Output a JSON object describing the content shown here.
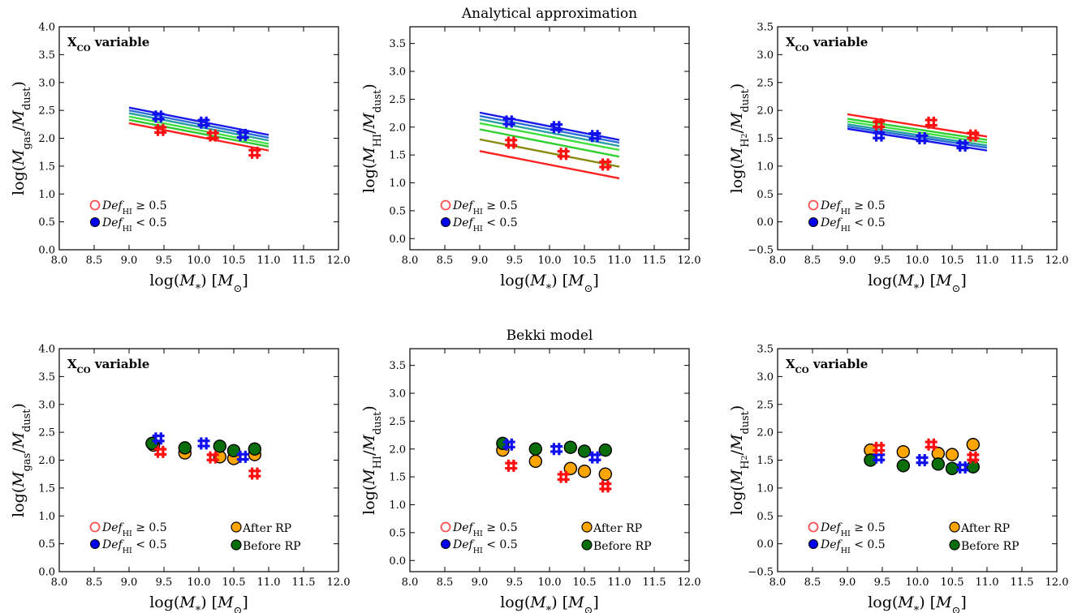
{
  "figure": {
    "row_titles": [
      "Analytical approximation",
      "Bekki model"
    ],
    "xlabel": "log(M*) [M⊙]",
    "annotation": "XCO variable"
  },
  "chart_data": [
    {
      "type": "line",
      "row": 0,
      "col": 0,
      "ylabel": "log(Mgas/Mdust)",
      "xlim": [
        8.0,
        12.0
      ],
      "ylim": [
        0.0,
        4.0
      ],
      "xticks": [
        "8.0",
        "8.5",
        "9.0",
        "9.5",
        "10.0",
        "10.5",
        "11.0",
        "11.5",
        "12.0"
      ],
      "yticks": [
        "0.0",
        "0.5",
        "1.0",
        "1.5",
        "2.0",
        "2.5",
        "3.0",
        "3.5",
        "4.0"
      ],
      "annotation": "XCO variable",
      "lines": [
        {
          "color": "#ff2020",
          "x": [
            9.0,
            11.0
          ],
          "y": [
            2.27,
            1.78
          ]
        },
        {
          "color": "#2fc82f",
          "x": [
            9.0,
            11.0
          ],
          "y": [
            2.33,
            1.85
          ]
        },
        {
          "color": "#40e040",
          "x": [
            9.0,
            11.0
          ],
          "y": [
            2.39,
            1.9
          ]
        },
        {
          "color": "#2aa0a0",
          "x": [
            9.0,
            11.0
          ],
          "y": [
            2.45,
            1.96
          ]
        },
        {
          "color": "#2a6cd8",
          "x": [
            9.0,
            11.0
          ],
          "y": [
            2.5,
            2.01
          ]
        },
        {
          "color": "#1818e8",
          "x": [
            9.0,
            11.0
          ],
          "y": [
            2.55,
            2.06
          ]
        }
      ],
      "points": [
        {
          "group": "def_low",
          "color": "#1010ee",
          "x": 9.42,
          "y": 2.39
        },
        {
          "group": "def_low",
          "color": "#1010ee",
          "x": 10.07,
          "y": 2.28
        },
        {
          "group": "def_low",
          "color": "#1010ee",
          "x": 10.63,
          "y": 2.06
        },
        {
          "group": "def_high",
          "color": "#ff1010",
          "x": 9.45,
          "y": 2.15
        },
        {
          "group": "def_high",
          "color": "#ff1010",
          "x": 10.2,
          "y": 2.05
        },
        {
          "group": "def_high",
          "color": "#ff1010",
          "x": 10.8,
          "y": 1.74
        }
      ],
      "legend": [
        {
          "label": "DefHI ≥ 0.5",
          "marker": "open-circle",
          "color": "#ff5050"
        },
        {
          "label": "DefHI < 0.5",
          "marker": "filled-circle",
          "color": "#0000ee"
        }
      ],
      "legend2": []
    },
    {
      "type": "line",
      "row": 0,
      "col": 1,
      "ylabel": "log(MHI/Mdust)",
      "xlim": [
        8.0,
        12.0
      ],
      "ylim": [
        -0.2,
        3.8
      ],
      "xticks": [
        "8.0",
        "8.5",
        "9.0",
        "9.5",
        "10.0",
        "10.5",
        "11.0",
        "11.5",
        "12.0"
      ],
      "yticks": [
        "0.0",
        "0.5",
        "1.0",
        "1.5",
        "2.0",
        "2.5",
        "3.0",
        "3.5"
      ],
      "annotation": "",
      "lines": [
        {
          "color": "#ff2020",
          "x": [
            9.0,
            11.0
          ],
          "y": [
            1.57,
            1.08
          ]
        },
        {
          "color": "#8a8a10",
          "x": [
            9.0,
            11.0
          ],
          "y": [
            1.78,
            1.29
          ]
        },
        {
          "color": "#30d030",
          "x": [
            9.0,
            11.0
          ],
          "y": [
            1.96,
            1.47
          ]
        },
        {
          "color": "#40e040",
          "x": [
            9.0,
            11.0
          ],
          "y": [
            2.07,
            1.59
          ]
        },
        {
          "color": "#2aa0a0",
          "x": [
            9.0,
            11.0
          ],
          "y": [
            2.14,
            1.66
          ]
        },
        {
          "color": "#2a6cd8",
          "x": [
            9.0,
            11.0
          ],
          "y": [
            2.2,
            1.72
          ]
        },
        {
          "color": "#1818e8",
          "x": [
            9.0,
            11.0
          ],
          "y": [
            2.26,
            1.77
          ]
        }
      ],
      "points": [
        {
          "group": "def_low",
          "color": "#1010ee",
          "x": 9.42,
          "y": 2.1
        },
        {
          "group": "def_low",
          "color": "#1010ee",
          "x": 10.1,
          "y": 2.0
        },
        {
          "group": "def_low",
          "color": "#1010ee",
          "x": 10.65,
          "y": 1.84
        },
        {
          "group": "def_high",
          "color": "#ff1010",
          "x": 9.45,
          "y": 1.72
        },
        {
          "group": "def_high",
          "color": "#ff1010",
          "x": 10.2,
          "y": 1.52
        },
        {
          "group": "def_high",
          "color": "#ff1010",
          "x": 10.8,
          "y": 1.33
        }
      ],
      "legend": [
        {
          "label": "DefHI ≥ 0.5",
          "marker": "open-circle",
          "color": "#ff5050"
        },
        {
          "label": "DefHI < 0.5",
          "marker": "filled-circle",
          "color": "#0000ee"
        }
      ],
      "legend2": []
    },
    {
      "type": "line",
      "row": 0,
      "col": 2,
      "ylabel": "log(MH2/Mdust)",
      "xlim": [
        8.0,
        12.0
      ],
      "ylim": [
        -0.5,
        3.5
      ],
      "xticks": [
        "8.0",
        "8.5",
        "9.0",
        "9.5",
        "10.0",
        "10.5",
        "11.0",
        "11.5",
        "12.0"
      ],
      "yticks": [
        "−0.5",
        "0.0",
        "0.5",
        "1.0",
        "1.5",
        "2.0",
        "2.5",
        "3.0",
        "3.5"
      ],
      "annotation": "XCO variable",
      "lines": [
        {
          "color": "#ff2020",
          "x": [
            9.0,
            11.0
          ],
          "y": [
            1.93,
            1.53
          ]
        },
        {
          "color": "#30d030",
          "x": [
            9.0,
            11.0
          ],
          "y": [
            1.85,
            1.47
          ]
        },
        {
          "color": "#40e040",
          "x": [
            9.0,
            11.0
          ],
          "y": [
            1.8,
            1.42
          ]
        },
        {
          "color": "#2aa0a0",
          "x": [
            9.0,
            11.0
          ],
          "y": [
            1.75,
            1.37
          ]
        },
        {
          "color": "#2a6cd8",
          "x": [
            9.0,
            11.0
          ],
          "y": [
            1.71,
            1.33
          ]
        },
        {
          "color": "#1818e8",
          "x": [
            9.0,
            11.0
          ],
          "y": [
            1.67,
            1.28
          ]
        }
      ],
      "points": [
        {
          "group": "def_low",
          "color": "#1010ee",
          "x": 9.45,
          "y": 1.55
        },
        {
          "group": "def_low",
          "color": "#1010ee",
          "x": 10.07,
          "y": 1.5
        },
        {
          "group": "def_low",
          "color": "#1010ee",
          "x": 10.65,
          "y": 1.37
        },
        {
          "group": "def_high",
          "color": "#ff1010",
          "x": 9.45,
          "y": 1.75
        },
        {
          "group": "def_high",
          "color": "#ff1010",
          "x": 10.2,
          "y": 1.78
        },
        {
          "group": "def_high",
          "color": "#ff1010",
          "x": 10.8,
          "y": 1.55
        }
      ],
      "legend": [
        {
          "label": "DefHI ≥ 0.5",
          "marker": "open-circle",
          "color": "#ff5050"
        },
        {
          "label": "DefHI < 0.5",
          "marker": "filled-circle",
          "color": "#0000ee"
        }
      ],
      "legend2": []
    },
    {
      "type": "scatter",
      "row": 1,
      "col": 0,
      "ylabel": "log(Mgas/Mdust)",
      "xlim": [
        8.0,
        12.0
      ],
      "ylim": [
        0.0,
        4.0
      ],
      "xticks": [
        "8.0",
        "8.5",
        "9.0",
        "9.5",
        "10.0",
        "10.5",
        "11.0",
        "11.5",
        "12.0"
      ],
      "yticks": [
        "0.0",
        "0.5",
        "1.0",
        "1.5",
        "2.0",
        "2.5",
        "3.0",
        "3.5",
        "4.0"
      ],
      "annotation": "XCO variable",
      "lines": [],
      "circles": [
        {
          "series": "After RP",
          "color": "#ffa500",
          "x": 9.35,
          "y": 2.27
        },
        {
          "series": "After RP",
          "color": "#ffa500",
          "x": 9.8,
          "y": 2.13
        },
        {
          "series": "After RP",
          "color": "#ffa500",
          "x": 10.3,
          "y": 2.06
        },
        {
          "series": "After RP",
          "color": "#ffa500",
          "x": 10.5,
          "y": 2.03
        },
        {
          "series": "After RP",
          "color": "#ffa500",
          "x": 10.8,
          "y": 2.1
        },
        {
          "series": "Before RP",
          "color": "#0a6e0a",
          "x": 9.33,
          "y": 2.3
        },
        {
          "series": "Before RP",
          "color": "#0a6e0a",
          "x": 9.8,
          "y": 2.22
        },
        {
          "series": "Before RP",
          "color": "#0a6e0a",
          "x": 10.3,
          "y": 2.25
        },
        {
          "series": "Before RP",
          "color": "#0a6e0a",
          "x": 10.5,
          "y": 2.17
        },
        {
          "series": "Before RP",
          "color": "#0a6e0a",
          "x": 10.8,
          "y": 2.2
        }
      ],
      "points": [
        {
          "group": "def_low",
          "color": "#1010ee",
          "x": 9.42,
          "y": 2.39
        },
        {
          "group": "def_low",
          "color": "#1010ee",
          "x": 10.07,
          "y": 2.3
        },
        {
          "group": "def_low",
          "color": "#1010ee",
          "x": 10.63,
          "y": 2.06
        },
        {
          "group": "def_high",
          "color": "#ff1010",
          "x": 9.45,
          "y": 2.15
        },
        {
          "group": "def_high",
          "color": "#ff1010",
          "x": 10.2,
          "y": 2.05
        },
        {
          "group": "def_high",
          "color": "#ff1010",
          "x": 10.8,
          "y": 1.76
        }
      ],
      "legend": [
        {
          "label": "DefHI ≥ 0.5",
          "marker": "open-circle",
          "color": "#ff5050"
        },
        {
          "label": "DefHI < 0.5",
          "marker": "filled-circle",
          "color": "#0000ee"
        }
      ],
      "legend2": [
        {
          "label": "After RP",
          "color": "#ffa500"
        },
        {
          "label": "Before RP",
          "color": "#0a6e0a"
        }
      ]
    },
    {
      "type": "scatter",
      "row": 1,
      "col": 1,
      "ylabel": "log(MHI/Mdust)",
      "xlim": [
        8.0,
        12.0
      ],
      "ylim": [
        -0.2,
        3.8
      ],
      "xticks": [
        "8.0",
        "8.5",
        "9.0",
        "9.5",
        "10.0",
        "10.5",
        "11.0",
        "11.5",
        "12.0"
      ],
      "yticks": [
        "0.0",
        "0.5",
        "1.0",
        "1.5",
        "2.0",
        "2.5",
        "3.0",
        "3.5"
      ],
      "annotation": "",
      "lines": [],
      "circles": [
        {
          "series": "After RP",
          "color": "#ffa500",
          "x": 9.33,
          "y": 1.98
        },
        {
          "series": "After RP",
          "color": "#ffa500",
          "x": 9.8,
          "y": 1.78
        },
        {
          "series": "After RP",
          "color": "#ffa500",
          "x": 10.3,
          "y": 1.65
        },
        {
          "series": "After RP",
          "color": "#ffa500",
          "x": 10.5,
          "y": 1.6
        },
        {
          "series": "After RP",
          "color": "#ffa500",
          "x": 10.8,
          "y": 1.55
        },
        {
          "series": "Before RP",
          "color": "#0a6e0a",
          "x": 9.33,
          "y": 2.1
        },
        {
          "series": "Before RP",
          "color": "#0a6e0a",
          "x": 9.8,
          "y": 2.0
        },
        {
          "series": "Before RP",
          "color": "#0a6e0a",
          "x": 10.3,
          "y": 2.03
        },
        {
          "series": "Before RP",
          "color": "#0a6e0a",
          "x": 10.5,
          "y": 1.96
        },
        {
          "series": "Before RP",
          "color": "#0a6e0a",
          "x": 10.8,
          "y": 1.98
        }
      ],
      "points": [
        {
          "group": "def_low",
          "color": "#1010ee",
          "x": 9.42,
          "y": 2.08
        },
        {
          "group": "def_low",
          "color": "#1010ee",
          "x": 10.1,
          "y": 2.0
        },
        {
          "group": "def_low",
          "color": "#1010ee",
          "x": 10.65,
          "y": 1.85
        },
        {
          "group": "def_high",
          "color": "#ff1010",
          "x": 9.45,
          "y": 1.7
        },
        {
          "group": "def_high",
          "color": "#ff1010",
          "x": 10.2,
          "y": 1.5
        },
        {
          "group": "def_high",
          "color": "#ff1010",
          "x": 10.8,
          "y": 1.33
        }
      ],
      "legend": [
        {
          "label": "DefHI ≥ 0.5",
          "marker": "open-circle",
          "color": "#ff5050"
        },
        {
          "label": "DefHI < 0.5",
          "marker": "filled-circle",
          "color": "#0000ee"
        }
      ],
      "legend2": [
        {
          "label": "After RP",
          "color": "#ffa500"
        },
        {
          "label": "Before RP",
          "color": "#0a6e0a"
        }
      ]
    },
    {
      "type": "scatter",
      "row": 1,
      "col": 2,
      "ylabel": "log(MH2/Mdust)",
      "xlim": [
        8.0,
        12.0
      ],
      "ylim": [
        -0.5,
        3.5
      ],
      "xticks": [
        "8.0",
        "8.5",
        "9.0",
        "9.5",
        "10.0",
        "10.5",
        "11.0",
        "11.5",
        "12.0"
      ],
      "yticks": [
        "−0.5",
        "0.0",
        "0.5",
        "1.0",
        "1.5",
        "2.0",
        "2.5",
        "3.0",
        "3.5"
      ],
      "annotation": "XCO variable",
      "lines": [],
      "circles": [
        {
          "series": "After RP",
          "color": "#ffa500",
          "x": 9.33,
          "y": 1.68
        },
        {
          "series": "After RP",
          "color": "#ffa500",
          "x": 9.8,
          "y": 1.65
        },
        {
          "series": "After RP",
          "color": "#ffa500",
          "x": 10.3,
          "y": 1.62
        },
        {
          "series": "After RP",
          "color": "#ffa500",
          "x": 10.5,
          "y": 1.6
        },
        {
          "series": "After RP",
          "color": "#ffa500",
          "x": 10.8,
          "y": 1.78
        },
        {
          "series": "Before RP",
          "color": "#0a6e0a",
          "x": 9.33,
          "y": 1.5
        },
        {
          "series": "Before RP",
          "color": "#0a6e0a",
          "x": 9.8,
          "y": 1.4
        },
        {
          "series": "Before RP",
          "color": "#0a6e0a",
          "x": 10.3,
          "y": 1.43
        },
        {
          "series": "Before RP",
          "color": "#0a6e0a",
          "x": 10.5,
          "y": 1.35
        },
        {
          "series": "Before RP",
          "color": "#0a6e0a",
          "x": 10.8,
          "y": 1.38
        }
      ],
      "points": [
        {
          "group": "def_low",
          "color": "#1010ee",
          "x": 9.45,
          "y": 1.55
        },
        {
          "group": "def_low",
          "color": "#1010ee",
          "x": 10.07,
          "y": 1.5
        },
        {
          "group": "def_low",
          "color": "#1010ee",
          "x": 10.65,
          "y": 1.37
        },
        {
          "group": "def_high",
          "color": "#ff1010",
          "x": 9.45,
          "y": 1.72
        },
        {
          "group": "def_high",
          "color": "#ff1010",
          "x": 10.2,
          "y": 1.78
        },
        {
          "group": "def_high",
          "color": "#ff1010",
          "x": 10.8,
          "y": 1.55
        }
      ],
      "legend": [
        {
          "label": "DefHI ≥ 0.5",
          "marker": "open-circle",
          "color": "#ff5050"
        },
        {
          "label": "DefHI < 0.5",
          "marker": "filled-circle",
          "color": "#0000ee"
        }
      ],
      "legend2": [
        {
          "label": "After RP",
          "color": "#ffa500"
        },
        {
          "label": "Before RP",
          "color": "#0a6e0a"
        }
      ]
    }
  ]
}
